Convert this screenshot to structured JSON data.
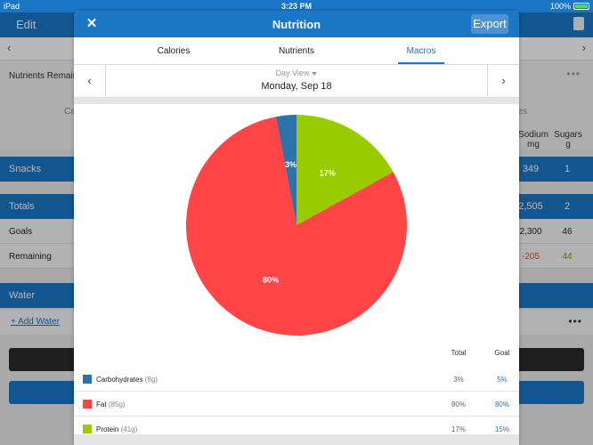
{
  "status_bar": {
    "device": "iPad",
    "time": "3:23 PM",
    "battery": "100%"
  },
  "background": {
    "edit_label": "Edit",
    "nutrients_remaining": "Nutrients Remaining",
    "left_header_fragment": "Ca",
    "right_header_fragment": "es",
    "col_sodium": "Sodium",
    "col_sodium_unit": "mg",
    "col_sugars": "Sugars",
    "col_sugars_unit": "g",
    "snacks": {
      "label": "Snacks",
      "sodium": "349",
      "sugars": "1"
    },
    "totals": {
      "label": "Totals",
      "sodium": "2,505",
      "sugars": "2"
    },
    "goals": {
      "label": "Goals",
      "sodium": "2,300",
      "sugars": "46"
    },
    "remaining": {
      "label": "Remaining",
      "sodium": "-205",
      "sugars": "44"
    },
    "water": {
      "label": "Water",
      "add_link": "+ Add Water"
    },
    "more_dots": "•••"
  },
  "modal": {
    "title": "Nutrition",
    "close_glyph": "✕",
    "export_label": "Export",
    "tabs": [
      {
        "label": "Calories"
      },
      {
        "label": "Nutrients"
      },
      {
        "label": "Macros"
      }
    ],
    "active_tab": "Macros",
    "view_selector": "Day View",
    "date": "Monday, Sep 18",
    "legend_header": {
      "total": "Total",
      "goal": "Goal"
    },
    "colors": {
      "accent": "#1b76c6",
      "carbs": "#2d72ab",
      "fat": "#ff4545",
      "protein": "#99cc00"
    }
  },
  "chart_data": {
    "type": "pie",
    "slices": [
      {
        "name": "Carbohydrates",
        "grams": "(8g)",
        "value": 3,
        "label": "3%",
        "goal": "5%",
        "color": "#2d72ab"
      },
      {
        "name": "Protein",
        "grams": "(41g)",
        "value": 17,
        "label": "17%",
        "goal": "15%",
        "color": "#99cc00"
      },
      {
        "name": "Fat",
        "grams": "(85g)",
        "value": 80,
        "label": "80%",
        "goal": "80%",
        "color": "#ff4545"
      }
    ],
    "start": "top",
    "order_note_free": true
  }
}
